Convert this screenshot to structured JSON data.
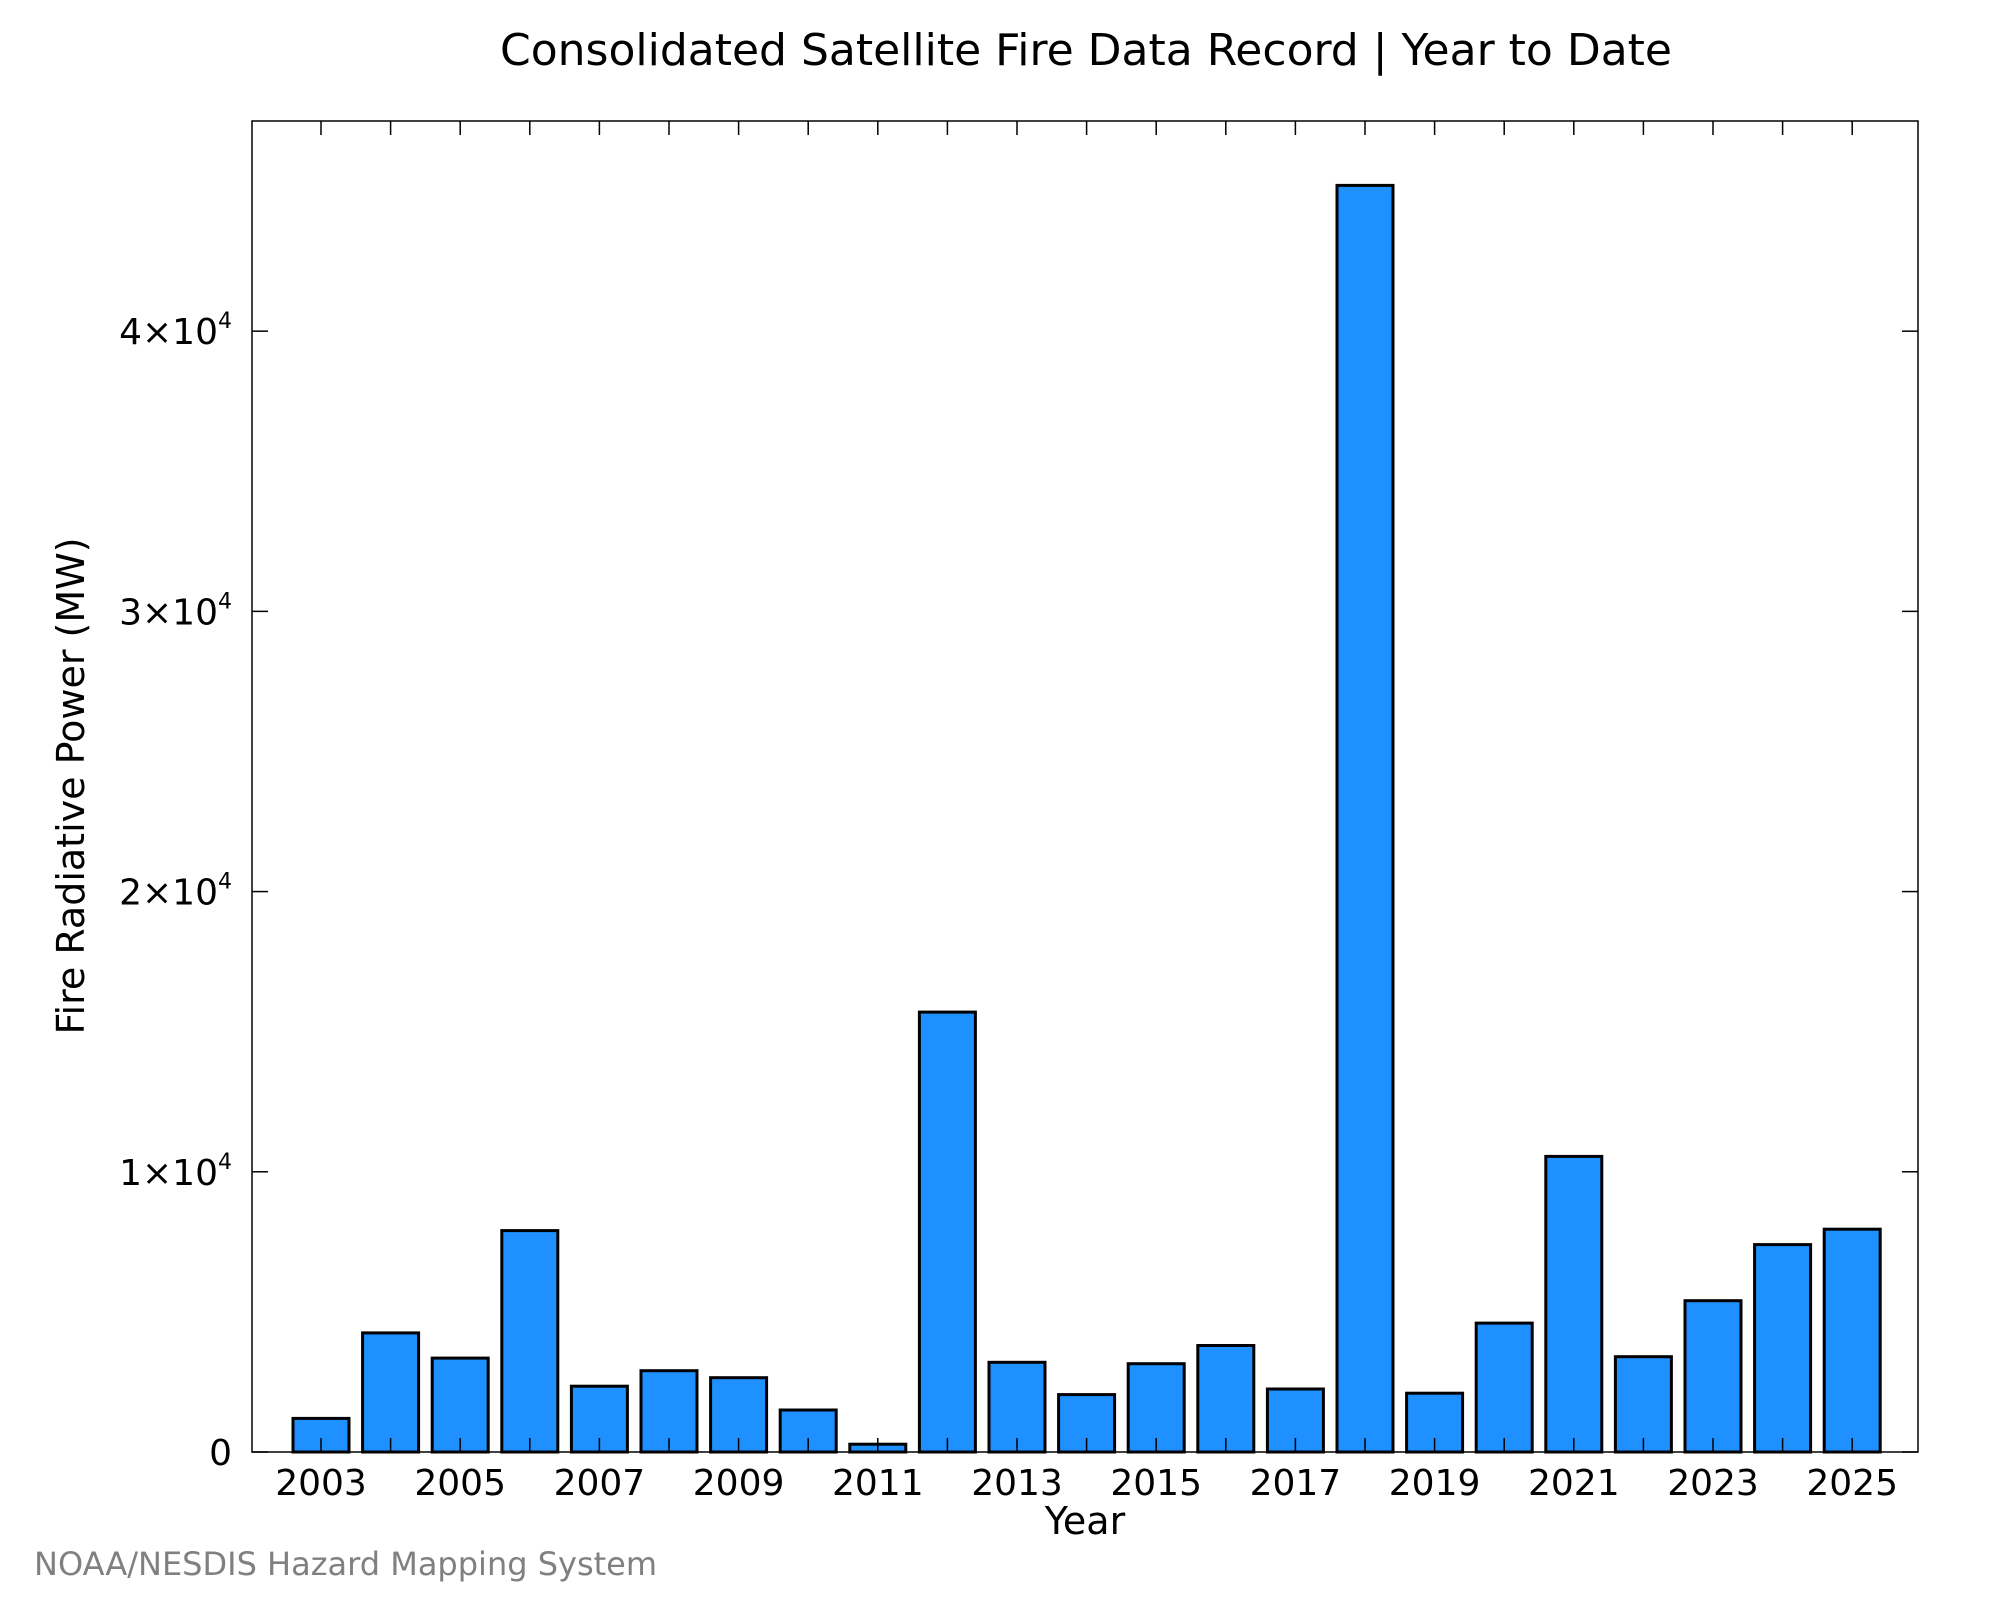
{
  "chart_data": {
    "type": "bar",
    "title": "Consolidated Satellite Fire Data Record | Year to Date",
    "xlabel": "Year",
    "ylabel": "Fire Radiative Power (MW)",
    "categories": [
      "2003",
      "2004",
      "2005",
      "2006",
      "2007",
      "2008",
      "2009",
      "2010",
      "2011",
      "2012",
      "2013",
      "2014",
      "2015",
      "2016",
      "2017",
      "2018",
      "2019",
      "2020",
      "2021",
      "2022",
      "2023",
      "2024",
      "2025"
    ],
    "values": [
      1200,
      4250,
      3350,
      7900,
      2350,
      2900,
      2650,
      1500,
      280,
      15700,
      3200,
      2050,
      3150,
      3800,
      2250,
      45200,
      2100,
      4600,
      10550,
      3400,
      5400,
      7400,
      7950
    ],
    "x_tick_labels": [
      "2003",
      "2005",
      "2007",
      "2009",
      "2011",
      "2013",
      "2015",
      "2017",
      "2019",
      "2021",
      "2023",
      "2025"
    ],
    "y_ticks": [
      {
        "value": 0,
        "mantissa": "0",
        "exponent": ""
      },
      {
        "value": 10000,
        "mantissa": "1×10",
        "exponent": "4"
      },
      {
        "value": 20000,
        "mantissa": "2×10",
        "exponent": "4"
      },
      {
        "value": 30000,
        "mantissa": "3×10",
        "exponent": "4"
      },
      {
        "value": 40000,
        "mantissa": "4×10",
        "exponent": "4"
      }
    ],
    "ylim": [
      0,
      47500
    ],
    "grid": false,
    "legend": "none",
    "bar_color": "#1e90ff",
    "bar_edge_color": "#000000"
  },
  "footer": {
    "credit": "NOAA/NESDIS Hazard Mapping System"
  }
}
